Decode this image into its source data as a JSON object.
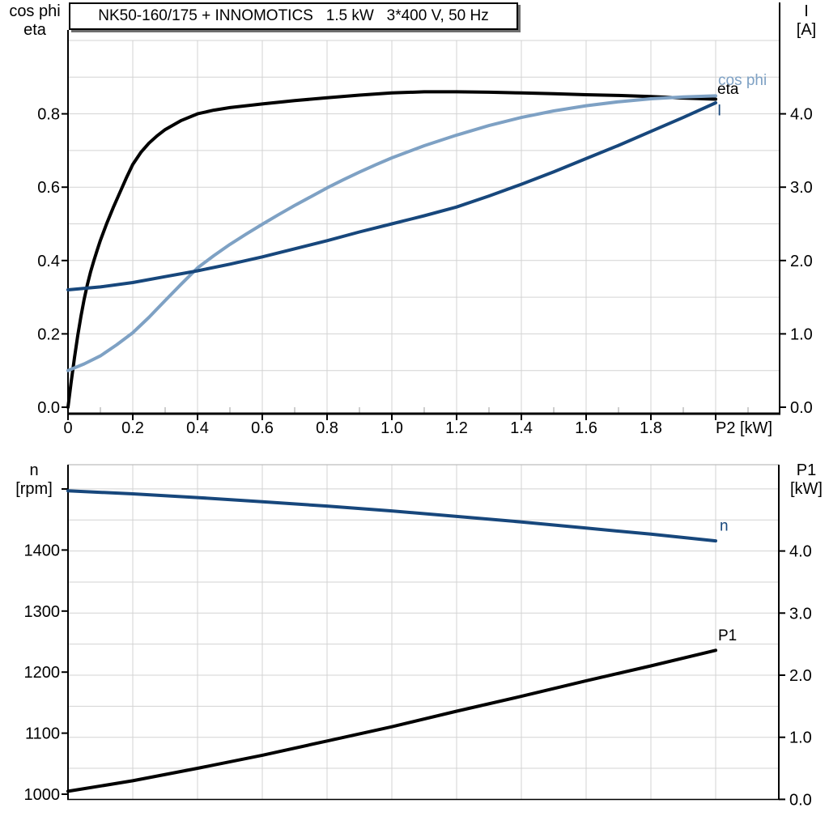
{
  "chart_data": [
    {
      "type": "line",
      "title": "NK50-160/175 + INNOMOTICS   1.5 kW   3*400 V, 50 Hz",
      "x_axis": {
        "label": "P2 [kW]",
        "min": 0,
        "max": 2.2,
        "ticks": [
          {
            "v": 0,
            "label": "0"
          },
          {
            "v": 0.2,
            "label": "0.2"
          },
          {
            "v": 0.4,
            "label": "0.4"
          },
          {
            "v": 0.6,
            "label": "0.6"
          },
          {
            "v": 0.8,
            "label": "0.8"
          },
          {
            "v": 1.0,
            "label": "1.0"
          },
          {
            "v": 1.2,
            "label": "1.2"
          },
          {
            "v": 1.4,
            "label": "1.4"
          },
          {
            "v": 1.6,
            "label": "1.6"
          },
          {
            "v": 1.8,
            "label": "1.8"
          },
          {
            "v": 2.0,
            "label": null
          }
        ],
        "grid": {
          "min": 0.2,
          "max": 2.0,
          "step": 0.2
        },
        "minor_ticks": {
          "start": 0.1,
          "end": 2.1,
          "step": 0.2
        }
      },
      "y_left": {
        "label_lines": [
          "cos phi",
          "eta"
        ],
        "min": 0,
        "max": 1.0,
        "ticks": [
          {
            "v": 0,
            "label": "0.0"
          },
          {
            "v": 0.2,
            "label": "0.2"
          },
          {
            "v": 0.4,
            "label": "0.4"
          },
          {
            "v": 0.6,
            "label": "0.6"
          },
          {
            "v": 0.8,
            "label": "0.8"
          }
        ]
      },
      "y_right": {
        "label_lines": [
          "I",
          "[A]"
        ],
        "min": 0,
        "max": 5.0,
        "ticks": [
          {
            "v": 0,
            "label": "0.0"
          },
          {
            "v": 1,
            "label": "1.0"
          },
          {
            "v": 2,
            "label": "2.0"
          },
          {
            "v": 3,
            "label": "3.0"
          },
          {
            "v": 4,
            "label": "4.0"
          }
        ]
      },
      "grid_y": {
        "axis": "left",
        "min": 0.1,
        "max": 1.0,
        "step": 0.1
      },
      "series": [
        {
          "name": "eta",
          "axis": "left",
          "color": "#000000",
          "points": [
            [
              0,
              0
            ],
            [
              0.01,
              0.07
            ],
            [
              0.02,
              0.135
            ],
            [
              0.03,
              0.195
            ],
            [
              0.04,
              0.248
            ],
            [
              0.05,
              0.295
            ],
            [
              0.06,
              0.335
            ],
            [
              0.07,
              0.37
            ],
            [
              0.08,
              0.4
            ],
            [
              0.09,
              0.428
            ],
            [
              0.1,
              0.455
            ],
            [
              0.12,
              0.502
            ],
            [
              0.14,
              0.545
            ],
            [
              0.16,
              0.585
            ],
            [
              0.18,
              0.625
            ],
            [
              0.2,
              0.662
            ],
            [
              0.225,
              0.695
            ],
            [
              0.25,
              0.72
            ],
            [
              0.275,
              0.74
            ],
            [
              0.3,
              0.757
            ],
            [
              0.35,
              0.782
            ],
            [
              0.4,
              0.8
            ],
            [
              0.45,
              0.81
            ],
            [
              0.5,
              0.817
            ],
            [
              0.6,
              0.827
            ],
            [
              0.7,
              0.836
            ],
            [
              0.8,
              0.844
            ],
            [
              0.9,
              0.851
            ],
            [
              1,
              0.857
            ],
            [
              1.1,
              0.86
            ],
            [
              1.2,
              0.86
            ],
            [
              1.3,
              0.859
            ],
            [
              1.4,
              0.857
            ],
            [
              1.5,
              0.855
            ],
            [
              1.6,
              0.852
            ],
            [
              1.7,
              0.85
            ],
            [
              1.8,
              0.847
            ],
            [
              1.9,
              0.843
            ],
            [
              2,
              0.84
            ]
          ]
        },
        {
          "name": "cos phi",
          "axis": "left",
          "color": "#7ea1c4",
          "points": [
            [
              0,
              0.1
            ],
            [
              0.05,
              0.118
            ],
            [
              0.1,
              0.14
            ],
            [
              0.15,
              0.17
            ],
            [
              0.2,
              0.203
            ],
            [
              0.25,
              0.245
            ],
            [
              0.3,
              0.291
            ],
            [
              0.35,
              0.336
            ],
            [
              0.4,
              0.38
            ],
            [
              0.45,
              0.413
            ],
            [
              0.5,
              0.444
            ],
            [
              0.55,
              0.472
            ],
            [
              0.6,
              0.499
            ],
            [
              0.65,
              0.525
            ],
            [
              0.7,
              0.55
            ],
            [
              0.75,
              0.574
            ],
            [
              0.8,
              0.598
            ],
            [
              0.85,
              0.62
            ],
            [
              0.9,
              0.641
            ],
            [
              0.95,
              0.661
            ],
            [
              1,
              0.68
            ],
            [
              1.1,
              0.713
            ],
            [
              1.2,
              0.742
            ],
            [
              1.3,
              0.768
            ],
            [
              1.4,
              0.79
            ],
            [
              1.5,
              0.808
            ],
            [
              1.6,
              0.822
            ],
            [
              1.7,
              0.833
            ],
            [
              1.8,
              0.841
            ],
            [
              1.9,
              0.846
            ],
            [
              2,
              0.849
            ]
          ]
        },
        {
          "name": "I",
          "axis": "right",
          "color": "#17477c",
          "points": [
            [
              0,
              1.6
            ],
            [
              0.1,
              1.64
            ],
            [
              0.2,
              1.7
            ],
            [
              0.3,
              1.78
            ],
            [
              0.4,
              1.86
            ],
            [
              0.5,
              1.95
            ],
            [
              0.6,
              2.05
            ],
            [
              0.7,
              2.16
            ],
            [
              0.8,
              2.27
            ],
            [
              0.9,
              2.39
            ],
            [
              1,
              2.5
            ],
            [
              1.1,
              2.61
            ],
            [
              1.2,
              2.73
            ],
            [
              1.3,
              2.88
            ],
            [
              1.4,
              3.04
            ],
            [
              1.5,
              3.21
            ],
            [
              1.6,
              3.39
            ],
            [
              1.7,
              3.57
            ],
            [
              1.8,
              3.76
            ],
            [
              1.9,
              3.95
            ],
            [
              2,
              4.15
            ]
          ]
        }
      ]
    },
    {
      "type": "line",
      "x_axis": {
        "label": null,
        "min": 0,
        "max": 2.2,
        "ticks": [],
        "grid": {
          "min": 0.2,
          "max": 2.0,
          "step": 0.2
        }
      },
      "y_left": {
        "label_lines": [
          "n",
          "[rpm]"
        ],
        "min": 1000,
        "max": 1540,
        "ticks": [
          {
            "v": 1000,
            "label": "1000"
          },
          {
            "v": 1100,
            "label": "1100"
          },
          {
            "v": 1200,
            "label": "1200"
          },
          {
            "v": 1300,
            "label": "1300"
          },
          {
            "v": 1400,
            "label": "1400"
          },
          {
            "v": 1500,
            "label": null
          }
        ]
      },
      "y_right": {
        "label_lines": [
          "P1",
          "[kW]"
        ],
        "min": 0,
        "max": 5.4,
        "ticks": [
          {
            "v": 0,
            "label": "0.0"
          },
          {
            "v": 1,
            "label": "1.0"
          },
          {
            "v": 2,
            "label": "2.0"
          },
          {
            "v": 3,
            "label": "3.0"
          },
          {
            "v": 4,
            "label": "4.0"
          }
        ]
      },
      "grid_y": {
        "axis": "right",
        "min": 0.5,
        "max": 5.0,
        "step": 0.5
      },
      "series": [
        {
          "name": "n",
          "axis": "left",
          "color": "#17477c",
          "points": [
            [
              0,
              1497
            ],
            [
              0.2,
              1492
            ],
            [
              0.4,
              1486
            ],
            [
              0.6,
              1479
            ],
            [
              0.8,
              1472
            ],
            [
              1,
              1464
            ],
            [
              1.2,
              1455
            ],
            [
              1.4,
              1446
            ],
            [
              1.6,
              1436
            ],
            [
              1.8,
              1426
            ],
            [
              2,
              1415
            ]
          ]
        },
        {
          "name": "P1",
          "axis": "right",
          "color": "#000000",
          "points": [
            [
              0,
              0.13
            ],
            [
              0.2,
              0.3
            ],
            [
              0.4,
              0.5
            ],
            [
              0.6,
              0.71
            ],
            [
              0.8,
              0.94
            ],
            [
              1,
              1.17
            ],
            [
              1.2,
              1.42
            ],
            [
              1.4,
              1.66
            ],
            [
              1.6,
              1.91
            ],
            [
              1.8,
              2.15
            ],
            [
              2,
              2.4
            ]
          ]
        }
      ]
    }
  ],
  "colors": {
    "dark_blue": "#17477c",
    "light_blue": "#7ea1c4",
    "black": "#000000",
    "grid": "#d3d3d3"
  }
}
